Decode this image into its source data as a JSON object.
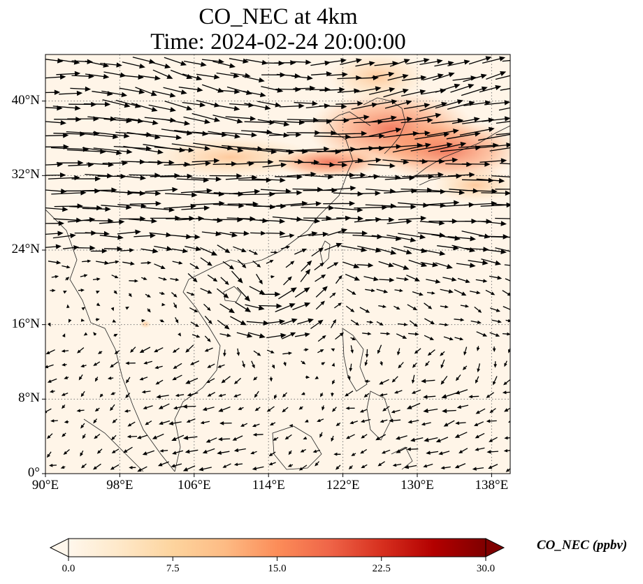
{
  "figure": {
    "title_line1": "CO_NEC at 4km",
    "title_line2": "Time: 2024-02-24 20:00:00"
  },
  "map": {
    "lon_range": [
      90,
      140
    ],
    "lat_range": [
      0,
      45
    ],
    "lon_ticks": [
      {
        "value": 90,
        "label": "90°E"
      },
      {
        "value": 98,
        "label": "98°E"
      },
      {
        "value": 106,
        "label": "106°E"
      },
      {
        "value": 114,
        "label": "114°E"
      },
      {
        "value": 122,
        "label": "122°E"
      },
      {
        "value": 130,
        "label": "130°E"
      },
      {
        "value": 138,
        "label": "138°E"
      }
    ],
    "lat_ticks": [
      {
        "value": 0,
        "label": "0°"
      },
      {
        "value": 8,
        "label": "8°N"
      },
      {
        "value": 16,
        "label": "16°N"
      },
      {
        "value": 24,
        "label": "24°N"
      },
      {
        "value": 32,
        "label": "32°N"
      },
      {
        "value": 40,
        "label": "40°N"
      }
    ],
    "gridlines": "dotted",
    "field": "CO_NEC concentration with wind vectors",
    "colormap": "OrRd",
    "background_color": "#fff5e8"
  },
  "colorbar": {
    "label": "CO_NEC (ppbv)",
    "min": 0,
    "max": 30,
    "extend": "both",
    "ticks": [
      {
        "value": 0,
        "label": "0.0"
      },
      {
        "value": 7.5,
        "label": "7.5"
      },
      {
        "value": 15,
        "label": "15.0"
      },
      {
        "value": 22.5,
        "label": "22.5"
      },
      {
        "value": 30,
        "label": "30.0"
      }
    ],
    "colors": [
      "#fff7ec",
      "#fee8c8",
      "#fdd49e",
      "#fdbb84",
      "#fc8d59",
      "#ef6548",
      "#d7301f",
      "#b30000",
      "#7f0000"
    ]
  }
}
